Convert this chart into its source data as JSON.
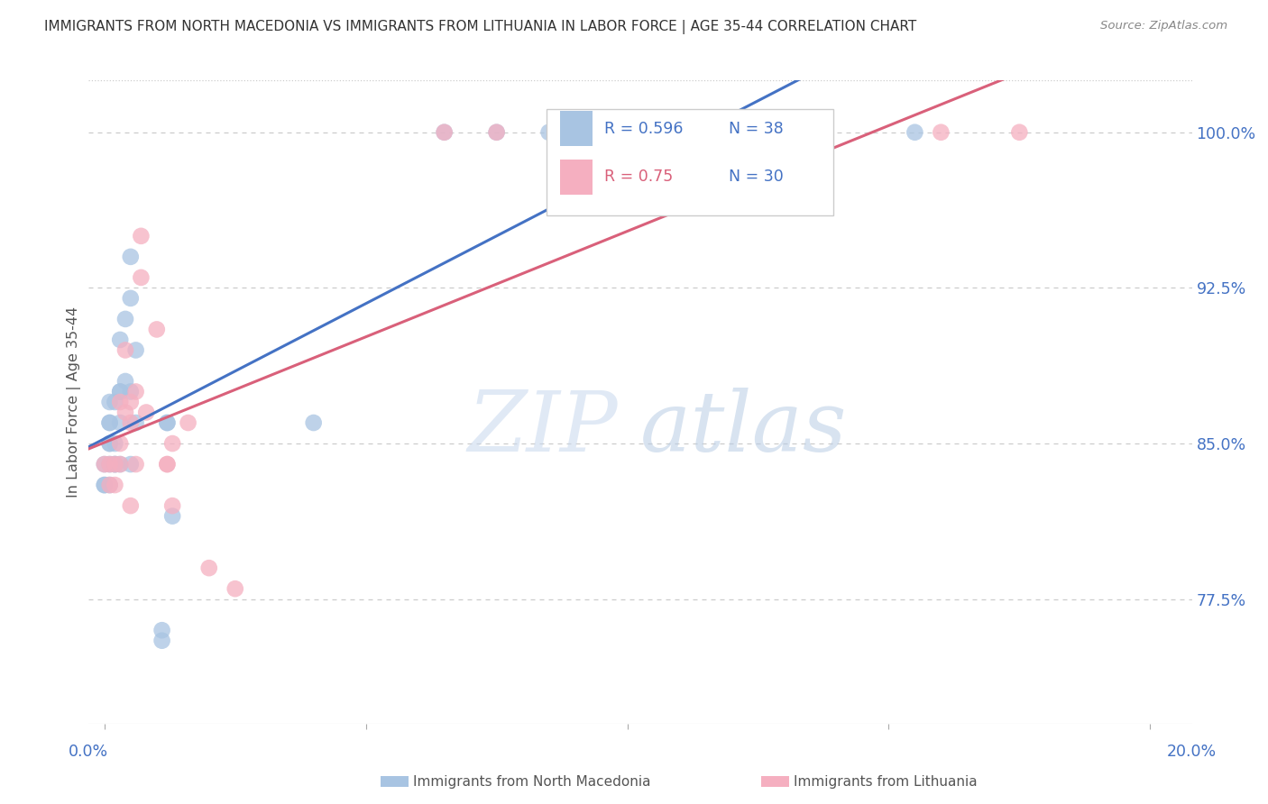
{
  "title": "IMMIGRANTS FROM NORTH MACEDONIA VS IMMIGRANTS FROM LITHUANIA IN LABOR FORCE | AGE 35-44 CORRELATION CHART",
  "source": "Source: ZipAtlas.com",
  "ylabel": "In Labor Force | Age 35-44",
  "ytick_labels": [
    "100.0%",
    "92.5%",
    "85.0%",
    "77.5%"
  ],
  "ytick_values": [
    1.0,
    0.925,
    0.85,
    0.775
  ],
  "ylim": [
    0.715,
    1.025
  ],
  "xlim": [
    -0.003,
    0.208
  ],
  "macedonia_color": "#a8c4e2",
  "lithuania_color": "#f5afc0",
  "macedonia_line_color": "#4472c4",
  "lithuania_line_color": "#d9607a",
  "legend_macedonia_label": "Immigrants from North Macedonia",
  "legend_lithuania_label": "Immigrants from Lithuania",
  "R_macedonia": 0.596,
  "N_macedonia": 38,
  "R_lithuania": 0.75,
  "N_lithuania": 30,
  "macedonia_x": [
    0.002,
    0.003,
    0.001,
    0.001,
    0.0,
    0.001,
    0.001,
    0.002,
    0.001,
    0.001,
    0.0,
    0.0,
    0.001,
    0.003,
    0.005,
    0.002,
    0.002,
    0.003,
    0.004,
    0.003,
    0.004,
    0.005,
    0.005,
    0.003,
    0.006,
    0.005,
    0.006,
    0.011,
    0.011,
    0.012,
    0.012,
    0.013,
    0.04,
    0.065,
    0.075,
    0.085,
    0.105,
    0.155
  ],
  "macedonia_y": [
    0.84,
    0.84,
    0.86,
    0.86,
    0.84,
    0.84,
    0.83,
    0.85,
    0.85,
    0.85,
    0.83,
    0.83,
    0.87,
    0.9,
    0.94,
    0.87,
    0.84,
    0.875,
    0.88,
    0.86,
    0.91,
    0.92,
    0.875,
    0.875,
    0.895,
    0.84,
    0.86,
    0.755,
    0.76,
    0.86,
    0.86,
    0.815,
    0.86,
    1.0,
    1.0,
    1.0,
    1.0,
    1.0
  ],
  "lithuania_x": [
    0.0,
    0.001,
    0.001,
    0.002,
    0.002,
    0.003,
    0.003,
    0.003,
    0.004,
    0.004,
    0.005,
    0.005,
    0.005,
    0.006,
    0.006,
    0.007,
    0.007,
    0.008,
    0.01,
    0.012,
    0.012,
    0.013,
    0.013,
    0.016,
    0.02,
    0.025,
    0.065,
    0.075,
    0.16,
    0.175
  ],
  "lithuania_y": [
    0.84,
    0.84,
    0.83,
    0.84,
    0.83,
    0.85,
    0.84,
    0.87,
    0.865,
    0.895,
    0.86,
    0.87,
    0.82,
    0.875,
    0.84,
    0.93,
    0.95,
    0.865,
    0.905,
    0.84,
    0.84,
    0.85,
    0.82,
    0.86,
    0.79,
    0.78,
    1.0,
    1.0,
    1.0,
    1.0
  ],
  "watermark_zip": "ZIP",
  "watermark_atlas": "atlas",
  "background_color": "#ffffff",
  "grid_color": "#cccccc",
  "right_label_color": "#4472c4",
  "title_color": "#333333",
  "source_color": "#888888",
  "legend_label_color": "#555555"
}
